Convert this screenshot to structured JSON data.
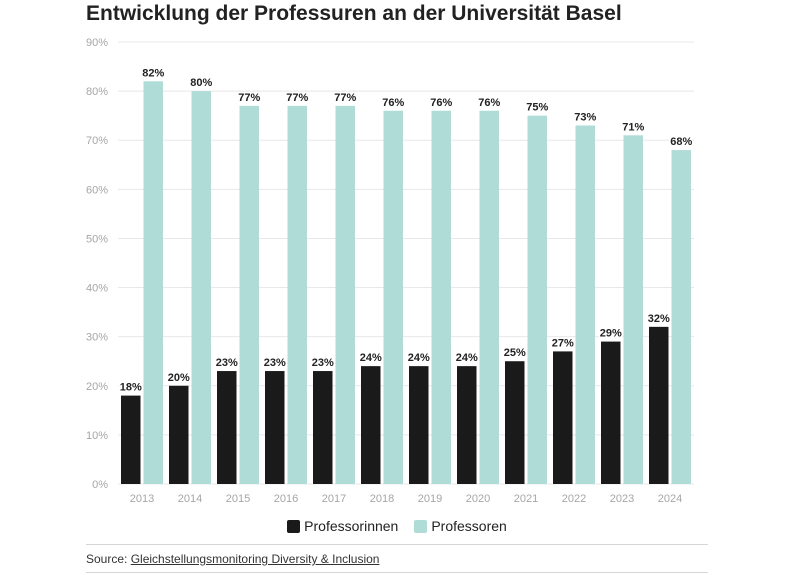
{
  "title": "Entwicklung der Professuren an der Universität Basel",
  "legend": {
    "women_label": "Professorinnen",
    "men_label": "Professoren"
  },
  "footer": {
    "source_prefix": "Source: ",
    "source_link": "Gleichstellungsmonitoring Diversity & Inclusion"
  },
  "colors": {
    "women": "#1a1a1a",
    "men": "#b0dcd8",
    "grid": "#e8e8e8",
    "tick": "#a6a6a6",
    "label": "#222222"
  },
  "chart_data": {
    "type": "bar",
    "categories": [
      "2013",
      "2014",
      "2015",
      "2016",
      "2017",
      "2018",
      "2019",
      "2020",
      "2021",
      "2022",
      "2023",
      "2024"
    ],
    "series": [
      {
        "name": "Professorinnen",
        "values": [
          18,
          20,
          23,
          23,
          23,
          24,
          24,
          24,
          25,
          27,
          29,
          32
        ]
      },
      {
        "name": "Professoren",
        "values": [
          82,
          80,
          77,
          77,
          77,
          76,
          76,
          76,
          75,
          73,
          71,
          68
        ]
      }
    ],
    "value_suffix": "%",
    "ylim": [
      0,
      90
    ],
    "yticks": [
      0,
      10,
      20,
      30,
      40,
      50,
      60,
      70,
      80,
      90
    ],
    "ytick_labels": [
      "0%",
      "10%",
      "20%",
      "30%",
      "40%",
      "50%",
      "60%",
      "70%",
      "80%",
      "90%"
    ],
    "grid": true,
    "legend_position": "bottom"
  }
}
